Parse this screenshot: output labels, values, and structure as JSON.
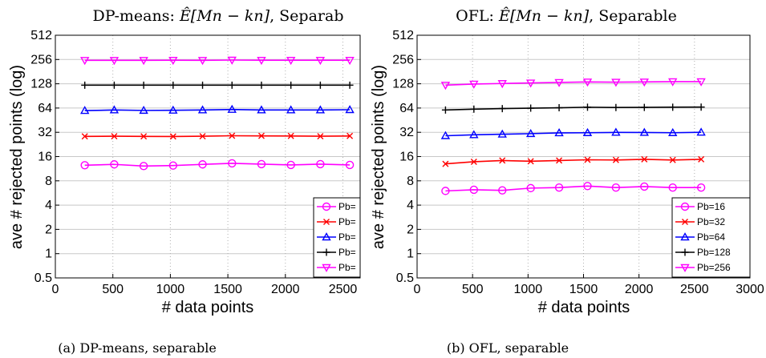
{
  "chart_data": [
    {
      "type": "line",
      "title_prefix": "DP-means: ",
      "title_expr": "Ê[Mn − kn]",
      "title_suffix": ", Separab",
      "caption": "(a) DP-means, separable",
      "xlabel": "# data points",
      "ylabel": "ave # rejected points (log)",
      "y_scale": "log2",
      "xlim": [
        0,
        2650
      ],
      "ylim": [
        0.5,
        512
      ],
      "x_ticks": [
        0,
        500,
        1000,
        1500,
        2000,
        2500
      ],
      "y_ticks": [
        0.5,
        1,
        2,
        4,
        8,
        16,
        32,
        64,
        128,
        256,
        512
      ],
      "y_tick_labels": [
        "0.5",
        "1",
        "2",
        "4",
        "8",
        "16",
        "32",
        "64",
        "128",
        "256",
        "512"
      ],
      "grid": "x dotted, y solid",
      "legend_placement": "bottom-right",
      "x": [
        256,
        512,
        768,
        1024,
        1280,
        1536,
        1792,
        2048,
        2304,
        2560
      ],
      "series": [
        {
          "name": "Pb=",
          "color": "#ff00ff",
          "marker": "circle",
          "values": [
            12.5,
            12.8,
            12.2,
            12.4,
            12.8,
            13.2,
            12.9,
            12.6,
            12.9,
            12.6
          ]
        },
        {
          "name": "Pb=",
          "color": "#ff0000",
          "marker": "x",
          "values": [
            28.5,
            28.6,
            28.5,
            28.4,
            28.6,
            29.0,
            28.9,
            28.8,
            28.6,
            28.8
          ]
        },
        {
          "name": "Pb=",
          "color": "#0000ff",
          "marker": "triangle-up",
          "values": [
            59.5,
            60.5,
            59.8,
            60.0,
            60.5,
            61.5,
            60.5,
            60.5,
            60.5,
            61.0
          ]
        },
        {
          "name": "Pb=",
          "color": "#000000",
          "marker": "plus",
          "values": [
            123,
            123,
            123,
            123,
            123,
            123,
            123,
            123,
            123,
            123
          ]
        },
        {
          "name": "Pb=",
          "color": "#ff00ff",
          "marker": "triangle-down",
          "values": [
            250,
            250,
            250,
            251,
            250,
            252,
            251,
            251,
            251,
            251
          ]
        }
      ]
    },
    {
      "type": "line",
      "title_prefix": "OFL: ",
      "title_expr": "Ê[Mn − kn]",
      "title_suffix": ", Separable",
      "caption": "(b) OFL, separable",
      "xlabel": "# data points",
      "ylabel": "ave # rejected points (log)",
      "y_scale": "log2",
      "xlim": [
        0,
        3000
      ],
      "ylim": [
        0.5,
        512
      ],
      "x_ticks": [
        0,
        500,
        1000,
        1500,
        2000,
        2500,
        3000
      ],
      "y_ticks": [
        0.5,
        1,
        2,
        4,
        8,
        16,
        32,
        64,
        128,
        256,
        512
      ],
      "y_tick_labels": [
        "0.5",
        "1",
        "2",
        "4",
        "8",
        "16",
        "32",
        "64",
        "128",
        "256",
        "512"
      ],
      "grid": "x dotted, y solid",
      "legend_placement": "bottom-right",
      "x": [
        256,
        512,
        768,
        1024,
        1280,
        1536,
        1792,
        2048,
        2304,
        2560
      ],
      "series": [
        {
          "name": "Pb=16",
          "color": "#ff00ff",
          "marker": "circle",
          "values": [
            6.0,
            6.2,
            6.1,
            6.5,
            6.6,
            6.9,
            6.6,
            6.8,
            6.6,
            6.6
          ]
        },
        {
          "name": "Pb=32",
          "color": "#ff0000",
          "marker": "x",
          "values": [
            13.0,
            13.8,
            14.3,
            14.0,
            14.3,
            14.6,
            14.5,
            14.8,
            14.5,
            14.8
          ]
        },
        {
          "name": "Pb=64",
          "color": "#0000ff",
          "marker": "triangle-up",
          "values": [
            29.0,
            29.8,
            30.3,
            30.8,
            31.5,
            31.6,
            31.9,
            31.8,
            31.6,
            32.0
          ]
        },
        {
          "name": "Pb=128",
          "color": "#000000",
          "marker": "plus",
          "values": [
            60.5,
            62.0,
            63.0,
            63.8,
            64.5,
            65.5,
            65.0,
            65.2,
            65.6,
            65.8
          ]
        },
        {
          "name": "Pb=256",
          "color": "#ff00ff",
          "marker": "triangle-down",
          "values": [
            123,
            127,
            129,
            131,
            133,
            135,
            134,
            135,
            136,
            136
          ]
        }
      ]
    }
  ]
}
